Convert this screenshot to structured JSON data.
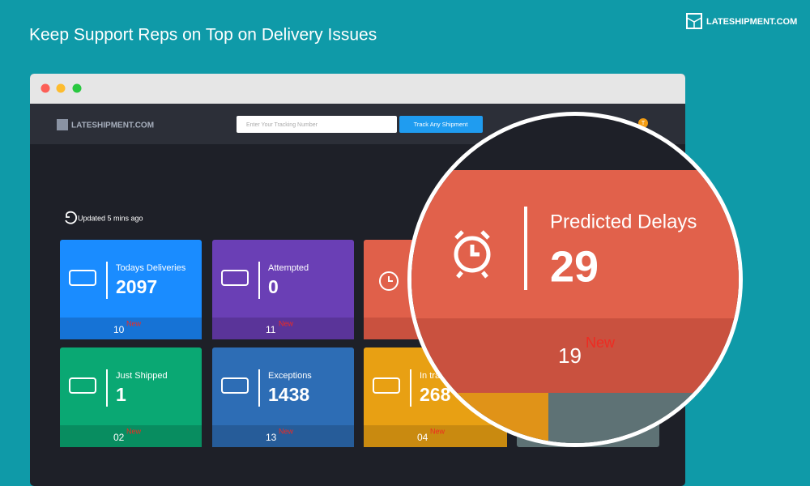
{
  "headline": "Keep Support Reps on Top on Delivery Issues",
  "brand": "LATESHIPMENT.COM",
  "app": {
    "brand": "LATESHIPMENT.COM",
    "search_placeholder": "Enter Your Tracking Number",
    "search_button": "Track Any Shipment",
    "user_initial": "T",
    "updated": "Updated 5 mins ago"
  },
  "cards": [
    {
      "label": "Todays Deliveries",
      "value": "2097",
      "new_count": "10",
      "new_label": "New"
    },
    {
      "label": "Attempted",
      "value": "0",
      "new_count": "11",
      "new_label": "New"
    },
    {
      "label": "Just Shipped",
      "value": "1",
      "new_count": "02",
      "new_label": "New"
    },
    {
      "label": "Exceptions",
      "value": "1438",
      "new_count": "13",
      "new_label": "New"
    },
    {
      "label": "In tra",
      "value": "268",
      "new_count": "04",
      "new_label": "New"
    }
  ],
  "magnifier": {
    "label": "Predicted Delays",
    "value": "29",
    "new_count": "19",
    "new_label": "New"
  }
}
